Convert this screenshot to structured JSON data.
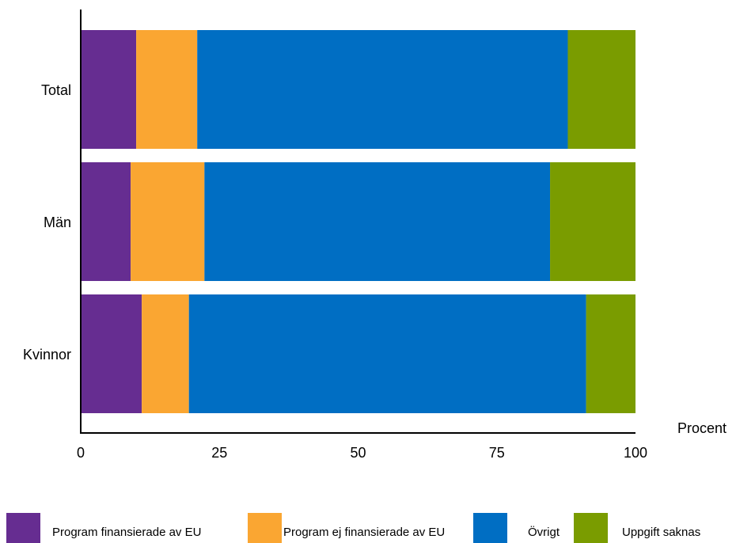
{
  "chart_data": {
    "type": "bar",
    "orientation": "horizontal",
    "stacked": true,
    "categories": [
      "Total",
      "Män",
      "Kvinnor"
    ],
    "series": [
      {
        "name": "Program finansierade av EU",
        "color": "#662d91",
        "values": [
          10,
          9,
          11
        ]
      },
      {
        "name": "Program ej finansierade av EU",
        "color": "#faa632",
        "values": [
          11,
          13.3,
          8.5
        ]
      },
      {
        "name": "Övrigt",
        "color": "#006ec3",
        "values": [
          66.8,
          62.3,
          71.6
        ]
      },
      {
        "name": "Uppgift saknas",
        "color": "#7a9c00",
        "values": [
          12.2,
          15.4,
          8.9
        ]
      }
    ],
    "xlabel": "Procent",
    "xlim": [
      0,
      100
    ],
    "xticks": [
      "0",
      "25",
      "50",
      "75",
      "100"
    ],
    "xtick_values": [
      0,
      25,
      50,
      75,
      100
    ],
    "grid": false,
    "legend_position": "bottom"
  }
}
